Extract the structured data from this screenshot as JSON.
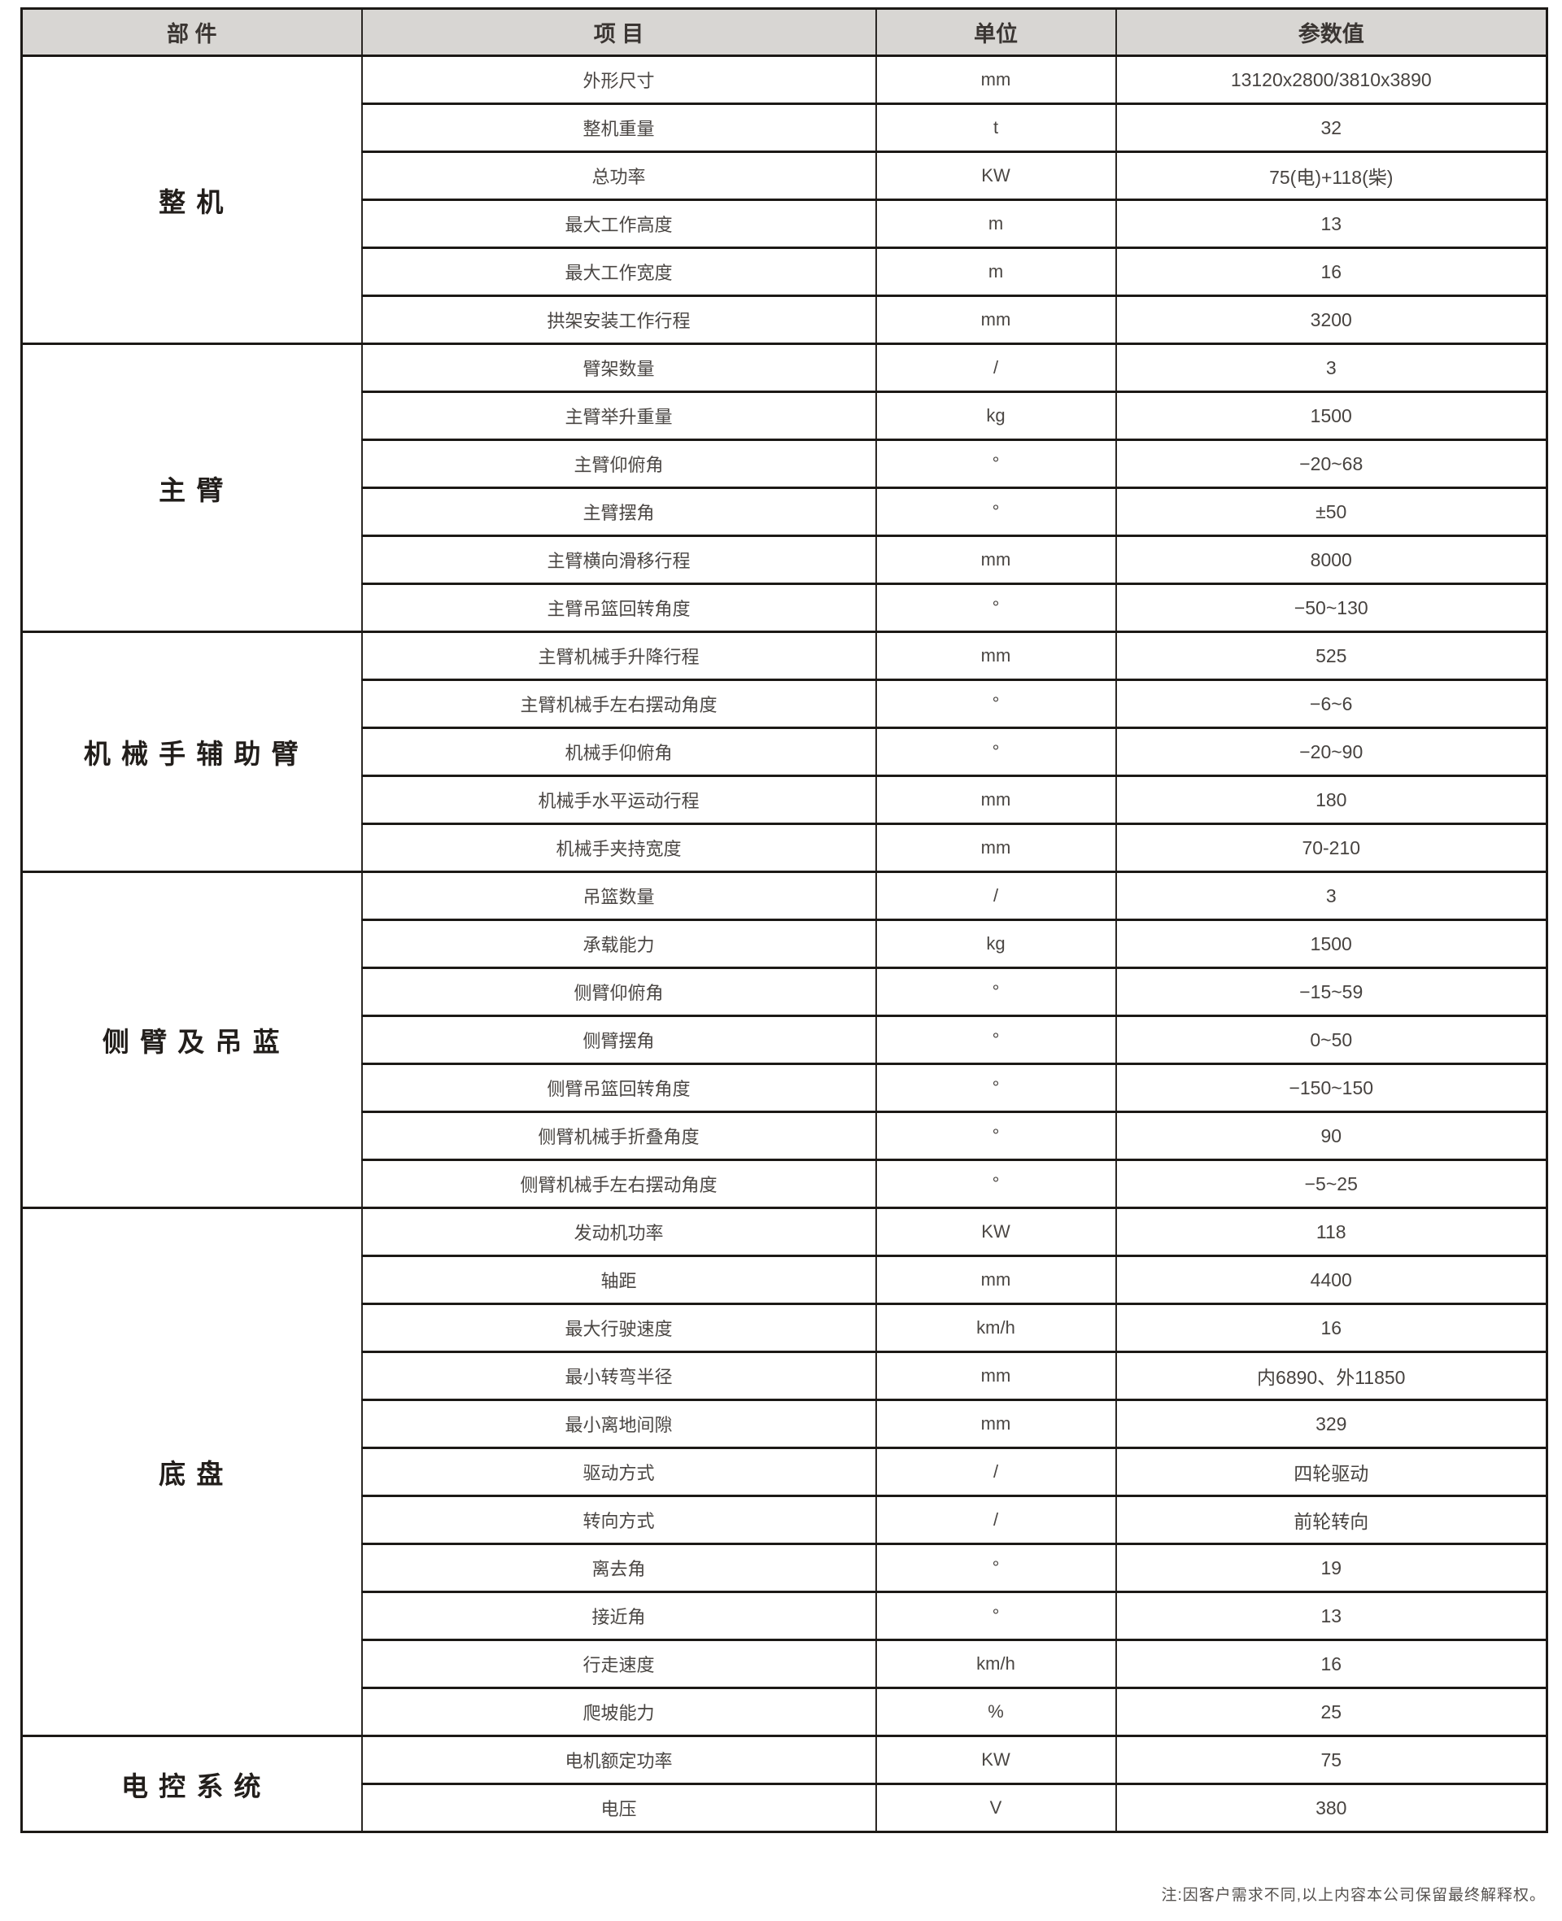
{
  "table": {
    "headers": [
      "部 件",
      "项 目",
      "单位",
      "参数值"
    ],
    "sections": [
      {
        "label": "整 机",
        "rows": [
          [
            "外形尺寸",
            "mm",
            "13120x2800/3810x3890"
          ],
          [
            "整机重量",
            "t",
            "32"
          ],
          [
            "总功率",
            "KW",
            "75(电)+118(柴)"
          ],
          [
            "最大工作高度",
            "m",
            "13"
          ],
          [
            "最大工作宽度",
            "m",
            "16"
          ],
          [
            "拱架安装工作行程",
            "mm",
            "3200"
          ]
        ]
      },
      {
        "label": "主 臂",
        "rows": [
          [
            "臂架数量",
            "/",
            "3"
          ],
          [
            "主臂举升重量",
            "kg",
            "1500"
          ],
          [
            "主臂仰俯角",
            "°",
            "−20~68"
          ],
          [
            "主臂摆角",
            "°",
            "±50"
          ],
          [
            "主臂横向滑移行程",
            "mm",
            "8000"
          ],
          [
            "主臂吊篮回转角度",
            "°",
            "−50~130"
          ]
        ]
      },
      {
        "label": "机 械 手 辅 助 臂",
        "rows": [
          [
            "主臂机械手升降行程",
            "mm",
            "525"
          ],
          [
            "主臂机械手左右摆动角度",
            "°",
            "−6~6"
          ],
          [
            "机械手仰俯角",
            "°",
            "−20~90"
          ],
          [
            "机械手水平运动行程",
            "mm",
            "180"
          ],
          [
            "机械手夹持宽度",
            "mm",
            "70-210"
          ]
        ]
      },
      {
        "label": "侧 臂 及 吊 蓝",
        "rows": [
          [
            "吊篮数量",
            "/",
            "3"
          ],
          [
            "承载能力",
            "kg",
            "1500"
          ],
          [
            "侧臂仰俯角",
            "°",
            "−15~59"
          ],
          [
            "侧臂摆角",
            "°",
            "0~50"
          ],
          [
            "侧臂吊篮回转角度",
            "°",
            "−150~150"
          ],
          [
            "侧臂机械手折叠角度",
            "°",
            "90"
          ],
          [
            "侧臂机械手左右摆动角度",
            "°",
            "−5~25"
          ]
        ]
      },
      {
        "label": "底 盘",
        "rows": [
          [
            "发动机功率",
            "KW",
            "118"
          ],
          [
            "轴距",
            "mm",
            "4400"
          ],
          [
            "最大行驶速度",
            "km/h",
            "16"
          ],
          [
            "最小转弯半径",
            "mm",
            "内6890、外11850"
          ],
          [
            "最小离地间隙",
            "mm",
            "329"
          ],
          [
            "驱动方式",
            "/",
            "四轮驱动"
          ],
          [
            "转向方式",
            "/",
            "前轮转向"
          ],
          [
            "离去角",
            "°",
            "19"
          ],
          [
            "接近角",
            "°",
            "13"
          ],
          [
            "行走速度",
            "km/h",
            "16"
          ],
          [
            "爬坡能力",
            "%",
            "25"
          ]
        ]
      },
      {
        "label": "电 控 系 统",
        "rows": [
          [
            "电机额定功率",
            "KW",
            "75"
          ],
          [
            "电压",
            "V",
            "380"
          ]
        ]
      }
    ]
  },
  "footer": {
    "note": "注:因客户需求不同,以上内容本公司保留最终解释权。"
  }
}
